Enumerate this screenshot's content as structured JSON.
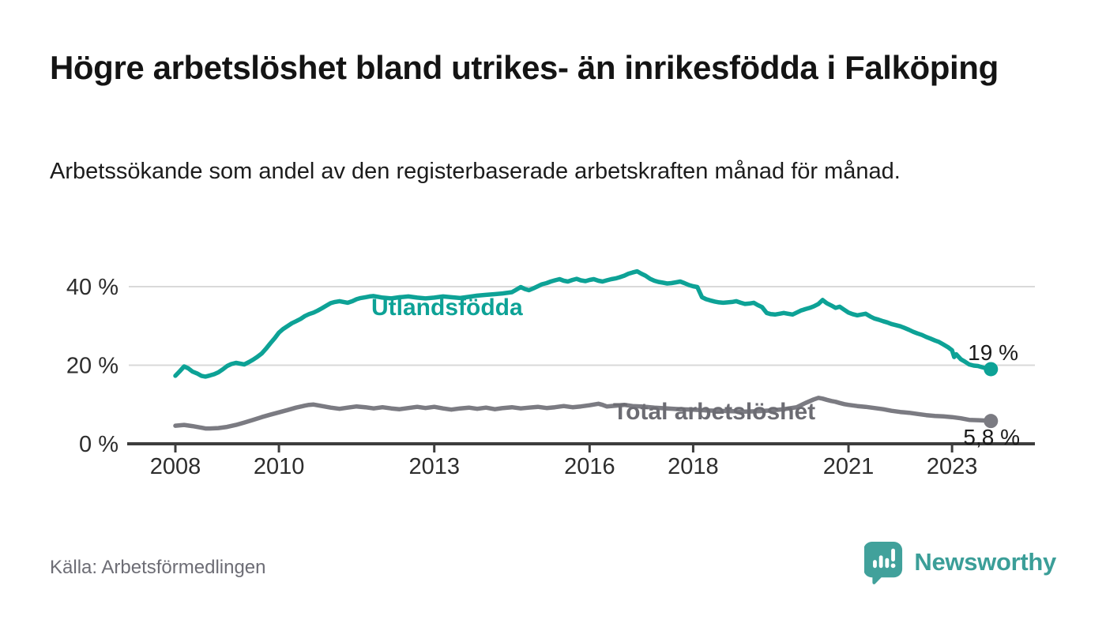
{
  "header": {
    "title": "Högre arbetslöshet bland utrikes- än inrikesfödda i Falköping",
    "subtitle": "Arbetssökande som andel av den registerbaserade arbetskraften månad för månad."
  },
  "footer": {
    "source": "Källa: Arbetsförmedlingen",
    "brand": "Newsworthy",
    "logo_icon": "bar-chart-speech-bubble-icon"
  },
  "colors": {
    "accent_teal": "#0da296",
    "series_gray": "#7b7b82",
    "series_gray_label": "#6c6c73",
    "axis": "#3d3d3d",
    "grid": "#d9d9d9",
    "tick_text": "#2d2d2d",
    "value_text": "#1a1a1a",
    "title_text": "#141414",
    "source_text": "#6d6d75",
    "brand_teal": "#3b9e98"
  },
  "chart_data": {
    "type": "line",
    "title": "Högre arbetslöshet bland utrikes- än inrikesfödda i Falköping",
    "subtitle": "Arbetssökande som andel av den registerbaserade arbetskraften månad för månad.",
    "xlabel": "",
    "ylabel": "",
    "grid": "horizontal",
    "legend_position": "inline-labels",
    "xlim": [
      2007.1,
      2024.6
    ],
    "ylim": [
      0,
      48
    ],
    "x_ticks": [
      {
        "value": 2008,
        "label": "2008"
      },
      {
        "value": 2010,
        "label": "2010"
      },
      {
        "value": 2013,
        "label": "2013"
      },
      {
        "value": 2016,
        "label": "2016"
      },
      {
        "value": 2018,
        "label": "2018"
      },
      {
        "value": 2021,
        "label": "2021"
      },
      {
        "value": 2023,
        "label": "2023"
      }
    ],
    "y_ticks": [
      {
        "value": 0,
        "label": "0 %"
      },
      {
        "value": 20,
        "label": "20 %"
      },
      {
        "value": 40,
        "label": "40 %"
      }
    ],
    "series": [
      {
        "name": "Utlandsfödda",
        "color": "#0da296",
        "label_color": "#0da296",
        "end_label": "19 %",
        "end_value": 19,
        "points": [
          [
            2008.0,
            17.3
          ],
          [
            2008.08,
            18.4
          ],
          [
            2008.17,
            19.7
          ],
          [
            2008.25,
            19.2
          ],
          [
            2008.33,
            18.4
          ],
          [
            2008.42,
            17.9
          ],
          [
            2008.5,
            17.3
          ],
          [
            2008.58,
            17.1
          ],
          [
            2008.67,
            17.4
          ],
          [
            2008.75,
            17.7
          ],
          [
            2008.83,
            18.2
          ],
          [
            2008.92,
            19.0
          ],
          [
            2009.0,
            19.8
          ],
          [
            2009.08,
            20.3
          ],
          [
            2009.17,
            20.6
          ],
          [
            2009.25,
            20.4
          ],
          [
            2009.33,
            20.2
          ],
          [
            2009.42,
            20.8
          ],
          [
            2009.5,
            21.4
          ],
          [
            2009.58,
            22.1
          ],
          [
            2009.67,
            23.0
          ],
          [
            2009.75,
            24.2
          ],
          [
            2009.83,
            25.5
          ],
          [
            2009.92,
            26.9
          ],
          [
            2010.0,
            28.3
          ],
          [
            2010.08,
            29.2
          ],
          [
            2010.17,
            30.0
          ],
          [
            2010.25,
            30.7
          ],
          [
            2010.33,
            31.2
          ],
          [
            2010.42,
            31.8
          ],
          [
            2010.5,
            32.5
          ],
          [
            2010.58,
            33.0
          ],
          [
            2010.67,
            33.4
          ],
          [
            2010.75,
            33.9
          ],
          [
            2010.83,
            34.5
          ],
          [
            2010.92,
            35.2
          ],
          [
            2011.0,
            35.8
          ],
          [
            2011.08,
            36.1
          ],
          [
            2011.17,
            36.3
          ],
          [
            2011.25,
            36.1
          ],
          [
            2011.33,
            35.9
          ],
          [
            2011.42,
            36.3
          ],
          [
            2011.5,
            36.8
          ],
          [
            2011.58,
            37.1
          ],
          [
            2011.67,
            37.3
          ],
          [
            2011.75,
            37.5
          ],
          [
            2011.83,
            37.6
          ],
          [
            2011.92,
            37.4
          ],
          [
            2012.0,
            37.2
          ],
          [
            2012.17,
            37.0
          ],
          [
            2012.33,
            37.3
          ],
          [
            2012.5,
            37.5
          ],
          [
            2012.67,
            37.2
          ],
          [
            2012.83,
            37.0
          ],
          [
            2013.0,
            37.2
          ],
          [
            2013.17,
            37.5
          ],
          [
            2013.33,
            37.3
          ],
          [
            2013.5,
            37.1
          ],
          [
            2013.67,
            37.4
          ],
          [
            2013.83,
            37.7
          ],
          [
            2014.0,
            37.9
          ],
          [
            2014.17,
            38.1
          ],
          [
            2014.33,
            38.3
          ],
          [
            2014.5,
            38.6
          ],
          [
            2014.58,
            39.2
          ],
          [
            2014.67,
            39.9
          ],
          [
            2014.75,
            39.4
          ],
          [
            2014.83,
            39.1
          ],
          [
            2014.92,
            39.6
          ],
          [
            2015.0,
            40.1
          ],
          [
            2015.08,
            40.6
          ],
          [
            2015.17,
            40.9
          ],
          [
            2015.25,
            41.3
          ],
          [
            2015.33,
            41.6
          ],
          [
            2015.42,
            41.9
          ],
          [
            2015.5,
            41.5
          ],
          [
            2015.58,
            41.3
          ],
          [
            2015.67,
            41.7
          ],
          [
            2015.75,
            42.0
          ],
          [
            2015.83,
            41.6
          ],
          [
            2015.92,
            41.4
          ],
          [
            2016.0,
            41.7
          ],
          [
            2016.08,
            41.9
          ],
          [
            2016.17,
            41.5
          ],
          [
            2016.25,
            41.3
          ],
          [
            2016.33,
            41.6
          ],
          [
            2016.42,
            41.9
          ],
          [
            2016.5,
            42.1
          ],
          [
            2016.58,
            42.4
          ],
          [
            2016.67,
            42.8
          ],
          [
            2016.75,
            43.3
          ],
          [
            2016.83,
            43.6
          ],
          [
            2016.92,
            43.9
          ],
          [
            2017.0,
            43.3
          ],
          [
            2017.08,
            42.8
          ],
          [
            2017.17,
            42.0
          ],
          [
            2017.25,
            41.5
          ],
          [
            2017.33,
            41.2
          ],
          [
            2017.42,
            41.0
          ],
          [
            2017.5,
            40.8
          ],
          [
            2017.58,
            40.9
          ],
          [
            2017.67,
            41.1
          ],
          [
            2017.75,
            41.3
          ],
          [
            2017.83,
            40.9
          ],
          [
            2017.92,
            40.4
          ],
          [
            2018.0,
            40.1
          ],
          [
            2018.08,
            39.9
          ],
          [
            2018.17,
            37.3
          ],
          [
            2018.25,
            36.8
          ],
          [
            2018.33,
            36.5
          ],
          [
            2018.42,
            36.2
          ],
          [
            2018.5,
            36.0
          ],
          [
            2018.58,
            35.9
          ],
          [
            2018.67,
            36.0
          ],
          [
            2018.75,
            36.1
          ],
          [
            2018.83,
            36.3
          ],
          [
            2018.92,
            35.9
          ],
          [
            2019.0,
            35.6
          ],
          [
            2019.08,
            35.7
          ],
          [
            2019.17,
            35.9
          ],
          [
            2019.25,
            35.3
          ],
          [
            2019.33,
            34.8
          ],
          [
            2019.42,
            33.3
          ],
          [
            2019.5,
            33.0
          ],
          [
            2019.58,
            32.9
          ],
          [
            2019.67,
            33.1
          ],
          [
            2019.75,
            33.3
          ],
          [
            2019.83,
            33.1
          ],
          [
            2019.92,
            32.9
          ],
          [
            2020.0,
            33.4
          ],
          [
            2020.08,
            33.9
          ],
          [
            2020.17,
            34.3
          ],
          [
            2020.25,
            34.6
          ],
          [
            2020.33,
            35.0
          ],
          [
            2020.42,
            35.6
          ],
          [
            2020.5,
            36.6
          ],
          [
            2020.58,
            35.8
          ],
          [
            2020.67,
            35.2
          ],
          [
            2020.75,
            34.6
          ],
          [
            2020.83,
            34.9
          ],
          [
            2020.92,
            34.1
          ],
          [
            2021.0,
            33.4
          ],
          [
            2021.08,
            33.0
          ],
          [
            2021.17,
            32.7
          ],
          [
            2021.25,
            32.9
          ],
          [
            2021.33,
            33.1
          ],
          [
            2021.42,
            32.4
          ],
          [
            2021.5,
            31.9
          ],
          [
            2021.58,
            31.6
          ],
          [
            2021.67,
            31.2
          ],
          [
            2021.75,
            30.9
          ],
          [
            2021.83,
            30.5
          ],
          [
            2021.92,
            30.2
          ],
          [
            2022.0,
            29.9
          ],
          [
            2022.08,
            29.5
          ],
          [
            2022.17,
            29.0
          ],
          [
            2022.25,
            28.5
          ],
          [
            2022.33,
            28.1
          ],
          [
            2022.42,
            27.7
          ],
          [
            2022.5,
            27.2
          ],
          [
            2022.58,
            26.8
          ],
          [
            2022.67,
            26.3
          ],
          [
            2022.75,
            25.9
          ],
          [
            2022.83,
            25.3
          ],
          [
            2022.92,
            24.6
          ],
          [
            2023.0,
            23.8
          ],
          [
            2023.04,
            22.1
          ],
          [
            2023.08,
            22.8
          ],
          [
            2023.17,
            21.5
          ],
          [
            2023.25,
            20.9
          ],
          [
            2023.33,
            20.2
          ],
          [
            2023.42,
            19.9
          ],
          [
            2023.5,
            19.8
          ],
          [
            2023.58,
            19.5
          ],
          [
            2023.67,
            19.2
          ],
          [
            2023.75,
            19.0
          ]
        ]
      },
      {
        "name": "Total arbetslöshet",
        "color": "#7b7b82",
        "label_color": "#6c6c73",
        "end_label": "5,8 %",
        "end_value": 5.8,
        "points": [
          [
            2008.0,
            4.6
          ],
          [
            2008.17,
            4.8
          ],
          [
            2008.33,
            4.5
          ],
          [
            2008.5,
            4.1
          ],
          [
            2008.58,
            3.9
          ],
          [
            2008.67,
            3.9
          ],
          [
            2008.83,
            4.0
          ],
          [
            2009.0,
            4.3
          ],
          [
            2009.17,
            4.8
          ],
          [
            2009.33,
            5.4
          ],
          [
            2009.5,
            6.1
          ],
          [
            2009.67,
            6.8
          ],
          [
            2009.83,
            7.4
          ],
          [
            2010.0,
            8.0
          ],
          [
            2010.17,
            8.6
          ],
          [
            2010.33,
            9.2
          ],
          [
            2010.5,
            9.7
          ],
          [
            2010.58,
            9.9
          ],
          [
            2010.67,
            10.0
          ],
          [
            2010.83,
            9.6
          ],
          [
            2011.0,
            9.2
          ],
          [
            2011.17,
            8.9
          ],
          [
            2011.33,
            9.2
          ],
          [
            2011.5,
            9.5
          ],
          [
            2011.67,
            9.3
          ],
          [
            2011.83,
            9.0
          ],
          [
            2012.0,
            9.3
          ],
          [
            2012.17,
            9.0
          ],
          [
            2012.33,
            8.8
          ],
          [
            2012.5,
            9.1
          ],
          [
            2012.67,
            9.4
          ],
          [
            2012.83,
            9.1
          ],
          [
            2013.0,
            9.4
          ],
          [
            2013.17,
            9.0
          ],
          [
            2013.33,
            8.7
          ],
          [
            2013.5,
            9.0
          ],
          [
            2013.67,
            9.2
          ],
          [
            2013.83,
            8.9
          ],
          [
            2014.0,
            9.2
          ],
          [
            2014.17,
            8.8
          ],
          [
            2014.33,
            9.1
          ],
          [
            2014.5,
            9.3
          ],
          [
            2014.67,
            9.0
          ],
          [
            2014.83,
            9.2
          ],
          [
            2015.0,
            9.4
          ],
          [
            2015.17,
            9.1
          ],
          [
            2015.33,
            9.3
          ],
          [
            2015.5,
            9.6
          ],
          [
            2015.67,
            9.3
          ],
          [
            2015.83,
            9.5
          ],
          [
            2016.0,
            9.8
          ],
          [
            2016.17,
            10.2
          ],
          [
            2016.25,
            9.9
          ],
          [
            2016.33,
            9.5
          ],
          [
            2016.5,
            9.7
          ],
          [
            2016.67,
            9.9
          ],
          [
            2016.83,
            9.6
          ],
          [
            2017.0,
            9.5
          ],
          [
            2017.25,
            9.2
          ],
          [
            2017.5,
            9.0
          ],
          [
            2017.75,
            8.8
          ],
          [
            2018.0,
            8.7
          ],
          [
            2018.25,
            8.5
          ],
          [
            2018.5,
            8.4
          ],
          [
            2018.75,
            8.3
          ],
          [
            2019.0,
            8.2
          ],
          [
            2019.25,
            8.3
          ],
          [
            2019.5,
            8.5
          ],
          [
            2019.75,
            8.8
          ],
          [
            2020.0,
            9.3
          ],
          [
            2020.17,
            10.4
          ],
          [
            2020.33,
            11.3
          ],
          [
            2020.42,
            11.7
          ],
          [
            2020.5,
            11.5
          ],
          [
            2020.58,
            11.2
          ],
          [
            2020.67,
            10.9
          ],
          [
            2020.75,
            10.7
          ],
          [
            2020.83,
            10.4
          ],
          [
            2020.92,
            10.1
          ],
          [
            2021.0,
            9.9
          ],
          [
            2021.17,
            9.6
          ],
          [
            2021.33,
            9.4
          ],
          [
            2021.5,
            9.1
          ],
          [
            2021.67,
            8.8
          ],
          [
            2021.83,
            8.4
          ],
          [
            2022.0,
            8.1
          ],
          [
            2022.17,
            7.9
          ],
          [
            2022.33,
            7.6
          ],
          [
            2022.5,
            7.3
          ],
          [
            2022.67,
            7.1
          ],
          [
            2022.83,
            7.0
          ],
          [
            2023.0,
            6.8
          ],
          [
            2023.17,
            6.5
          ],
          [
            2023.33,
            6.1
          ],
          [
            2023.5,
            6.0
          ],
          [
            2023.67,
            5.9
          ],
          [
            2023.75,
            5.8
          ]
        ]
      }
    ]
  }
}
